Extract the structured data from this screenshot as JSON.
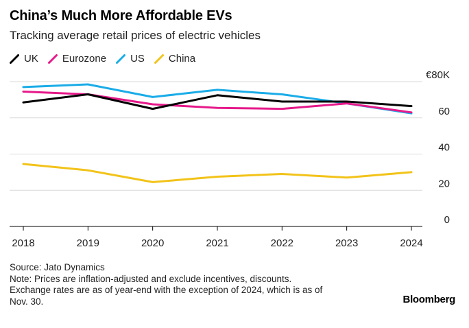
{
  "title": "China’s Much More Affordable EVs",
  "subtitle": "Tracking average retail prices of electric vehicles",
  "legend": [
    {
      "name": "UK",
      "color": "#000000"
    },
    {
      "name": "Eurozone",
      "color": "#e6198a"
    },
    {
      "name": "US",
      "color": "#1aace8"
    },
    {
      "name": "China",
      "color": "#f2c319"
    }
  ],
  "chart_data": {
    "type": "line",
    "x": [
      "2018",
      "2019",
      "2020",
      "2021",
      "2022",
      "2023",
      "2024"
    ],
    "series": [
      {
        "name": "UK",
        "color": "#000000",
        "values": [
          68.5,
          73,
          65,
          72.5,
          69,
          69,
          66.5
        ]
      },
      {
        "name": "Eurozone",
        "color": "#e6198a",
        "values": [
          74.5,
          73,
          67.5,
          65.5,
          65,
          68,
          63
        ]
      },
      {
        "name": "US",
        "color": "#1aace8",
        "values": [
          77,
          78.5,
          71.5,
          75.5,
          73,
          68,
          62.5
        ]
      },
      {
        "name": "China",
        "color": "#f2c319",
        "values": [
          34.5,
          31,
          24.5,
          27.5,
          29,
          27,
          30
        ]
      }
    ],
    "yticks": [
      {
        "value": 80,
        "label": "€80K"
      },
      {
        "value": 60,
        "label": "60"
      },
      {
        "value": 40,
        "label": "40"
      },
      {
        "value": 20,
        "label": "20"
      },
      {
        "value": 0,
        "label": "0"
      }
    ],
    "ylim": [
      0,
      80
    ],
    "grid": true,
    "legend_position": "top-left"
  },
  "footer": {
    "source": "Source: Jato Dynamics",
    "note_lines": [
      "Note: Prices are inflation-adjusted and exclude incentives, discounts.",
      "Exchange rates are as of year-end with the exception of 2024, which is as of",
      "Nov. 30."
    ]
  },
  "brand": "Bloomberg"
}
